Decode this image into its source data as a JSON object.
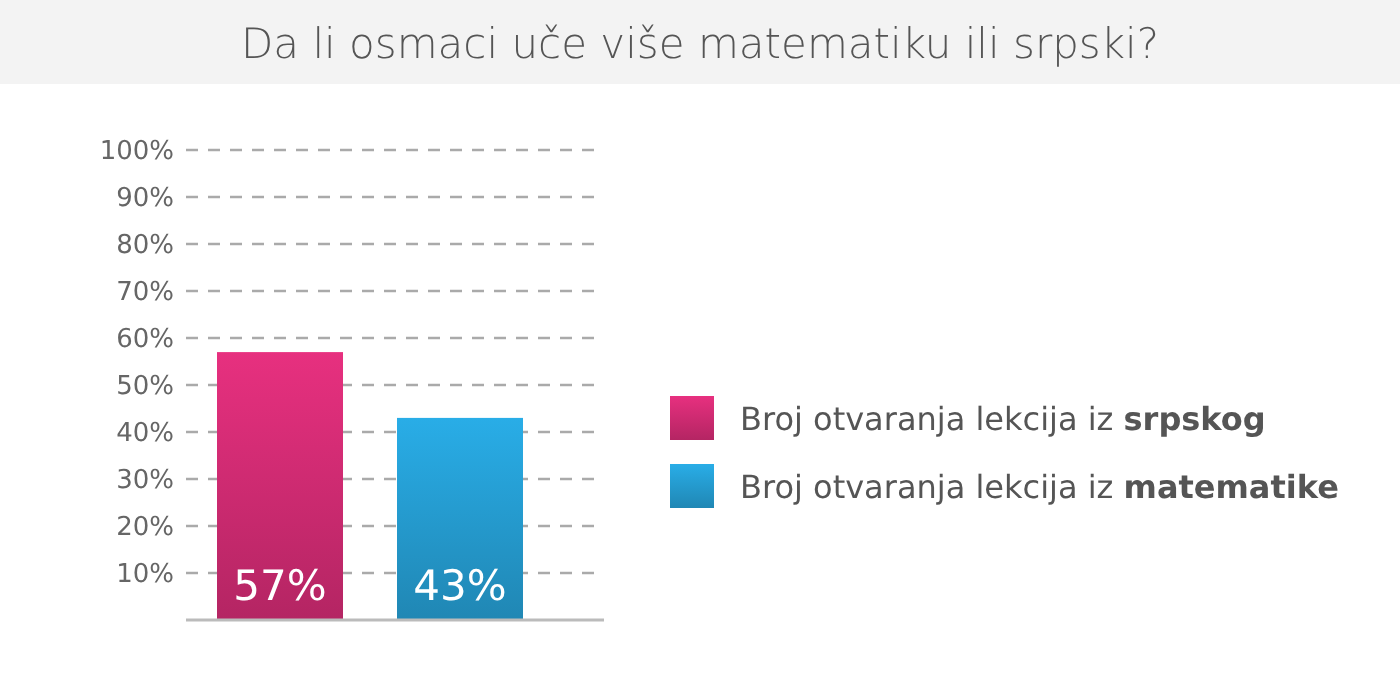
{
  "chart_data": {
    "type": "bar",
    "title": "Da li osmaci uče više matematiku ili srpski?",
    "categories": [
      null,
      null
    ],
    "series": [
      {
        "name": "Broj otvaranja lekcija iz srpskog",
        "color": "#cc2a70",
        "values": [
          57,
          null
        ],
        "value_labels": [
          "57%",
          null
        ]
      },
      {
        "name": "Broj otvaranja lekcija iz matematike",
        "color": "#2499cc",
        "values": [
          null,
          43
        ],
        "value_labels": [
          null,
          "43%"
        ]
      }
    ],
    "ylim": [
      0,
      100
    ],
    "yticks": [
      {
        "value": 10,
        "label": "10%"
      },
      {
        "value": 20,
        "label": "20%"
      },
      {
        "value": 30,
        "label": "30%"
      },
      {
        "value": 40,
        "label": "40%"
      },
      {
        "value": 50,
        "label": "50%"
      },
      {
        "value": 60,
        "label": "60%"
      },
      {
        "value": 70,
        "label": "70%"
      },
      {
        "value": 80,
        "label": "80%"
      },
      {
        "value": 90,
        "label": "90%"
      },
      {
        "value": 100,
        "label": "100%"
      }
    ],
    "grid": "y",
    "legend": "right"
  }
}
